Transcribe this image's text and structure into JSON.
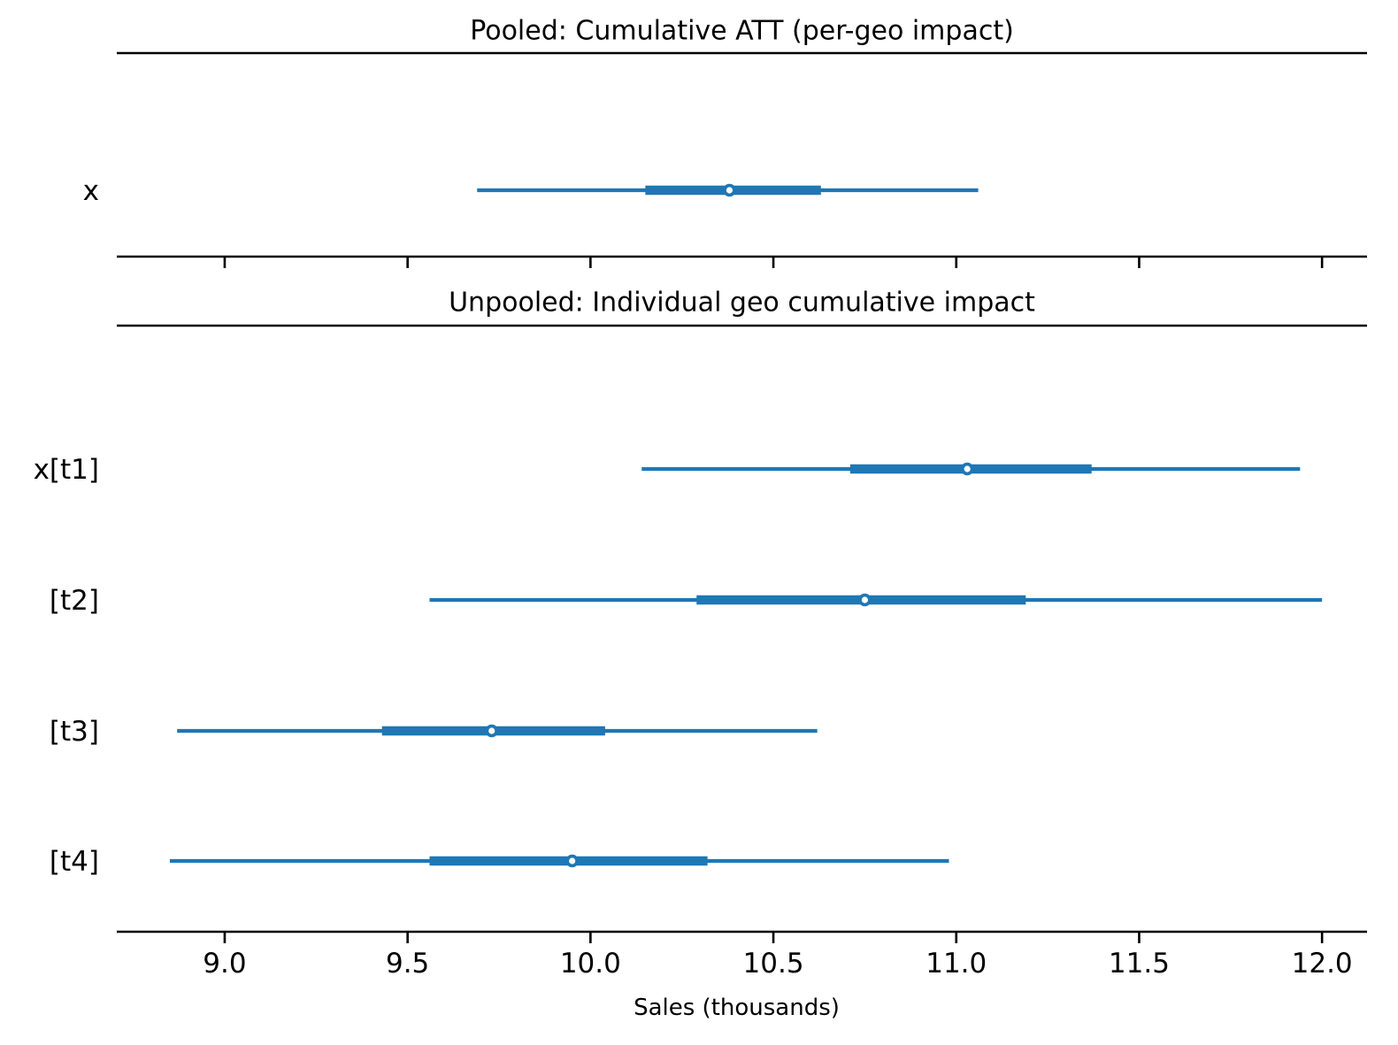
{
  "figure": {
    "background": "#ffffff"
  },
  "chart_data": [
    {
      "type": "forest",
      "title": "Pooled: Cumulative ATT (per-geo impact)",
      "legend": "none",
      "grid": false,
      "rows": [
        {
          "label": "x",
          "ci_low": 9.69,
          "ci_high": 11.06,
          "iqr_low": 10.15,
          "iqr_high": 10.63,
          "median": 10.38
        }
      ]
    },
    {
      "type": "forest",
      "title": "Unpooled: Individual geo cumulative impact",
      "legend": "none",
      "grid": false,
      "rows": [
        {
          "label": "x[t1]",
          "ci_low": 10.14,
          "ci_high": 11.94,
          "iqr_low": 10.71,
          "iqr_high": 11.37,
          "median": 11.03
        },
        {
          "label": "[t2]",
          "ci_low": 9.56,
          "ci_high": 12.0,
          "iqr_low": 10.29,
          "iqr_high": 11.19,
          "median": 10.75
        },
        {
          "label": "[t3]",
          "ci_low": 8.87,
          "ci_high": 10.62,
          "iqr_low": 9.43,
          "iqr_high": 10.04,
          "median": 9.73
        },
        {
          "label": "[t4]",
          "ci_low": 8.85,
          "ci_high": 10.98,
          "iqr_low": 9.56,
          "iqr_high": 10.32,
          "median": 9.95
        }
      ]
    }
  ],
  "axis": {
    "xlabel": "Sales (thousands)",
    "xticks": [
      9.0,
      9.5,
      10.0,
      10.5,
      11.0,
      11.5,
      12.0
    ],
    "xtick_labels": [
      "9.0",
      "9.5",
      "10.0",
      "10.5",
      "11.0",
      "11.5",
      "12.0"
    ],
    "xlim": [
      8.705,
      12.123
    ]
  },
  "colors": {
    "interval": "#1f77b4",
    "marker_fill": "#ffffff",
    "axis": "#000000"
  }
}
